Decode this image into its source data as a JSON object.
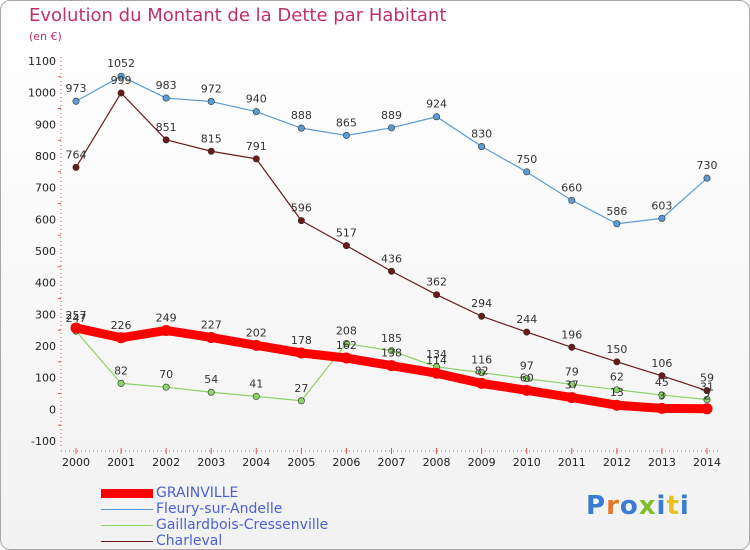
{
  "title": "Evolution du Montant de la Dette par Habitant",
  "unit": "(en €)",
  "logo": "Proxiti",
  "chart_data": {
    "type": "line",
    "x": [
      "2000",
      "2001",
      "2002",
      "2003",
      "2004",
      "2005",
      "2006",
      "2007",
      "2008",
      "2009",
      "2010",
      "2011",
      "2012",
      "2013",
      "2014"
    ],
    "ylim": [
      -100,
      1100
    ],
    "yticks": [
      -100,
      0,
      100,
      200,
      300,
      400,
      500,
      600,
      700,
      800,
      900,
      1000,
      1100
    ],
    "grid": false,
    "legend_position": "bottom-left",
    "series": [
      {
        "name": "Fleury-sur-Andelle",
        "color": "#5b9bd5",
        "width": 1.2,
        "marker": "#5b9bd5",
        "values": [
          973,
          1052,
          983,
          972,
          940,
          888,
          865,
          889,
          924,
          830,
          750,
          660,
          586,
          603,
          730
        ],
        "labels": [
          "973",
          "1052",
          "983",
          "972",
          "940",
          "888",
          "865",
          "889",
          "924",
          "830",
          "750",
          "660",
          "586",
          "603",
          "730"
        ]
      },
      {
        "name": "Charleval",
        "color": "#6b1a1a",
        "width": 1.2,
        "marker": "#6b1a1a",
        "values": [
          764,
          999,
          851,
          815,
          791,
          596,
          517,
          436,
          362,
          294,
          244,
          196,
          150,
          106,
          59
        ],
        "labels": [
          "764",
          "999",
          "851",
          "815",
          "791",
          "596",
          "517",
          "436",
          "362",
          "294",
          "244",
          "196",
          "150",
          "106",
          "59"
        ]
      },
      {
        "name": "Gaillardbois-Cressenville",
        "color": "#8fd16a",
        "width": 1.2,
        "marker": "#8fd16a",
        "values": [
          247,
          82,
          70,
          54,
          41,
          27,
          208,
          185,
          134,
          116,
          97,
          79,
          62,
          45,
          31
        ],
        "labels": [
          "247",
          "82",
          "70",
          "54",
          "41",
          "27",
          "208",
          "185",
          "134",
          "116",
          "97",
          "79",
          "62",
          "45",
          "31"
        ]
      },
      {
        "name": "GRAINVILLE",
        "color": "#ff0000",
        "width": 9,
        "marker": "#ff0000",
        "values": [
          257,
          226,
          249,
          227,
          202,
          178,
          162,
          138,
          114,
          82,
          60,
          37,
          13,
          3,
          2
        ],
        "labels": [
          "257",
          "226",
          "249",
          "227",
          "202",
          "178",
          "162",
          "138",
          "114",
          "82",
          "60",
          "37",
          "13",
          "3",
          "2"
        ]
      }
    ]
  },
  "legend": [
    {
      "name": "GRAINVILLE",
      "color": "#ff0000",
      "thick": true
    },
    {
      "name": "Fleury-sur-Andelle",
      "color": "#5b9bd5",
      "thick": false
    },
    {
      "name": "Gaillardbois-Cressenville",
      "color": "#8fd16a",
      "thick": false
    },
    {
      "name": "Charleval",
      "color": "#6b1a1a",
      "thick": false
    }
  ]
}
